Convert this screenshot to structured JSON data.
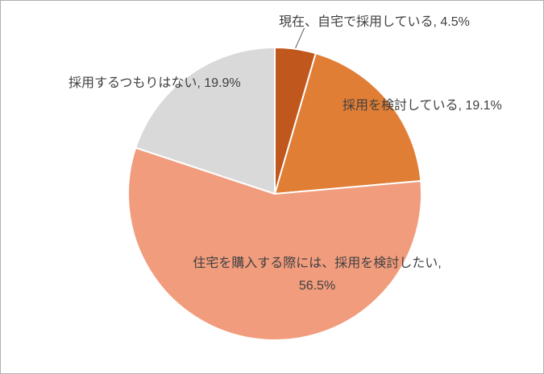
{
  "chart_data": {
    "type": "pie",
    "title": "",
    "legend": "none",
    "start_angle_deg": 0,
    "direction": "clockwise",
    "categories": [
      "現在、自宅で採用している",
      "採用を検討している",
      "住宅を購入する際には、採用を検討したい",
      "採用するつもりはない"
    ],
    "values": [
      4.5,
      19.1,
      56.5,
      19.9
    ],
    "unit": "%",
    "colors": [
      "#c0571c",
      "#e17e35",
      "#f19c7d",
      "#d9d9d9"
    ],
    "slice_border_color": "#ffffff",
    "leader_line_color": "#595959",
    "display_labels": [
      "現在、自宅で採用している, 4.5%",
      "採用を検討している, 19.1%",
      "住宅を購入する際には、採用を検討したい,",
      "56.5%",
      "採用するつもりはない, 19.9%"
    ]
  }
}
